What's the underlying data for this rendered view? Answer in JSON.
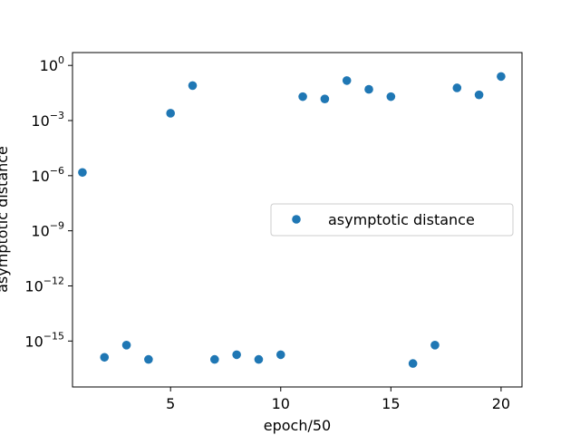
{
  "chart_data": {
    "type": "scatter",
    "title": "",
    "xlabel": "epoch/50",
    "ylabel": "asymptotic distance",
    "yscale": "log",
    "xlim": [
      0.55,
      20.95
    ],
    "ylim_exponent": [
      -17.5,
      0.7
    ],
    "xticks": [
      5,
      10,
      15,
      20
    ],
    "xtick_labels": [
      "5",
      "10",
      "15",
      "20"
    ],
    "yticks_exponent": [
      0,
      -3,
      -6,
      -9,
      -12,
      -15
    ],
    "ytick_labels": [
      "10",
      "10",
      "10",
      "10",
      "10",
      "10"
    ],
    "ytick_superscripts": [
      "0",
      "−3",
      "−6",
      "−9",
      "−12",
      "−15"
    ],
    "grid": false,
    "legend_position": "center-right",
    "marker_color": "#1f77b4",
    "series": [
      {
        "name": "asymptotic distance",
        "x": [
          1,
          2,
          3,
          4,
          5,
          6,
          7,
          8,
          9,
          10,
          11,
          12,
          13,
          14,
          15,
          16,
          17,
          18,
          19,
          20
        ],
        "y": [
          1.5e-06,
          1.3e-16,
          6e-16,
          1e-16,
          0.0025,
          0.08,
          1e-16,
          1.8e-16,
          1e-16,
          1.8e-16,
          0.02,
          0.015,
          0.15,
          0.05,
          0.02,
          6e-17,
          6e-16,
          0.06,
          0.025,
          0.25
        ]
      }
    ]
  }
}
